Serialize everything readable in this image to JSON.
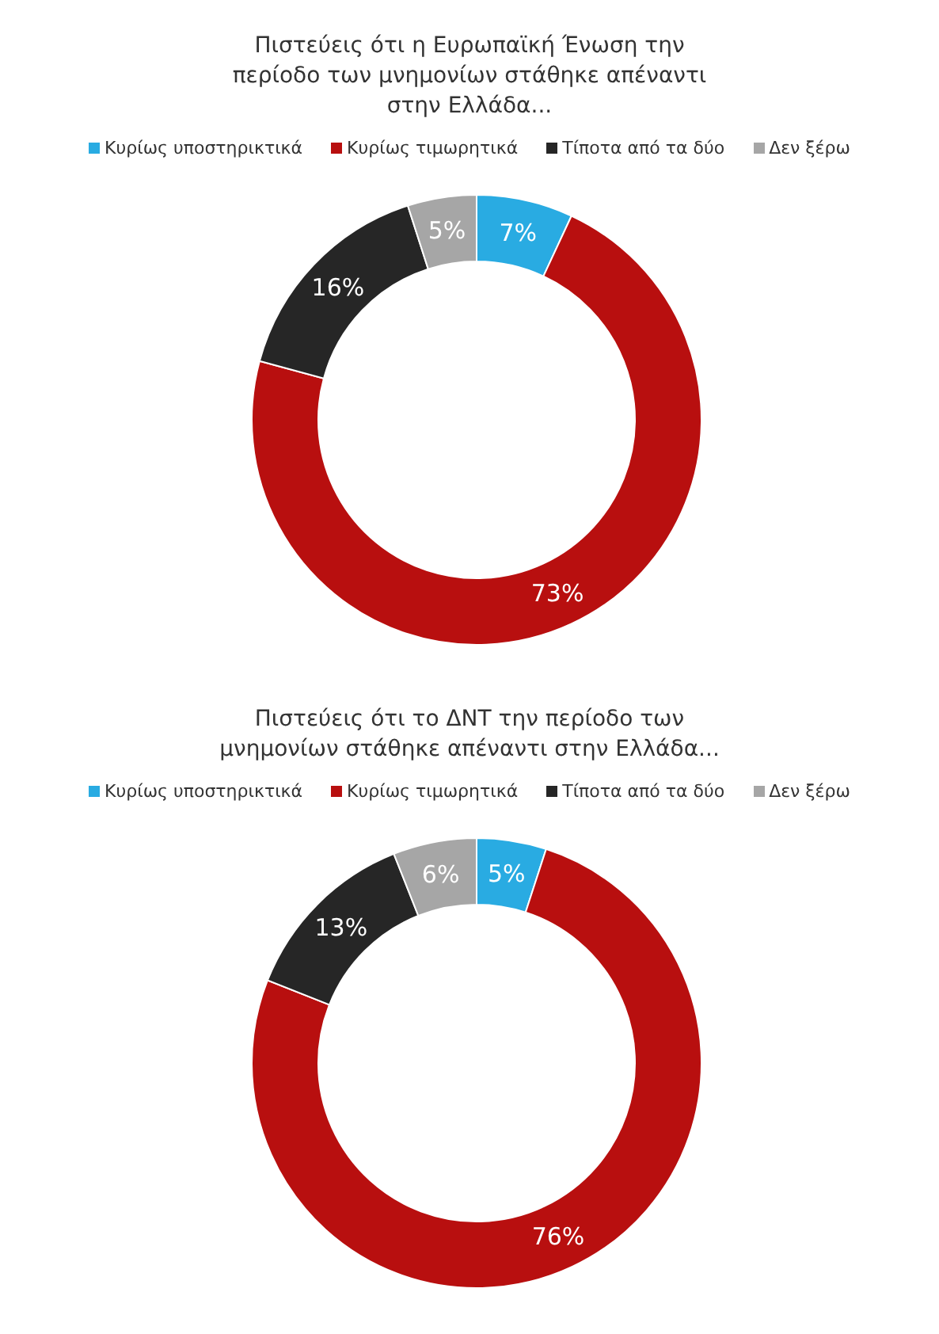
{
  "chart_data": [
    {
      "type": "donut",
      "title": "Πιστεύεις ότι η Ευρωπαϊκή Ένωση την περίοδο των μνημονίων στάθηκε απέναντι στην Ελλάδα...",
      "categories": [
        "Κυρίως υποστηρικτικά",
        "Κυρίως τιμωρητικά",
        "Τίποτα από τα δύο",
        "Δεν ξέρω"
      ],
      "values": [
        7,
        73,
        16,
        5
      ],
      "colors": [
        "#29abe2",
        "#b80f0f",
        "#262626",
        "#a6a6a6"
      ],
      "value_labels": [
        "7%",
        "73%",
        "16%",
        "5%"
      ],
      "legend": "top"
    },
    {
      "type": "donut",
      "title": "Πιστεύεις ότι το ΔΝΤ την περίοδο των μνημονίων στάθηκε απέναντι στην Ελλάδα...",
      "categories": [
        "Κυρίως υποστηρικτικά",
        "Κυρίως τιμωρητικά",
        "Τίποτα από τα δύο",
        "Δεν ξέρω"
      ],
      "values": [
        5,
        76,
        13,
        6
      ],
      "colors": [
        "#29abe2",
        "#b80f0f",
        "#262626",
        "#a6a6a6"
      ],
      "value_labels": [
        "5%",
        "76%",
        "13%",
        "6%"
      ],
      "legend": "top"
    }
  ]
}
